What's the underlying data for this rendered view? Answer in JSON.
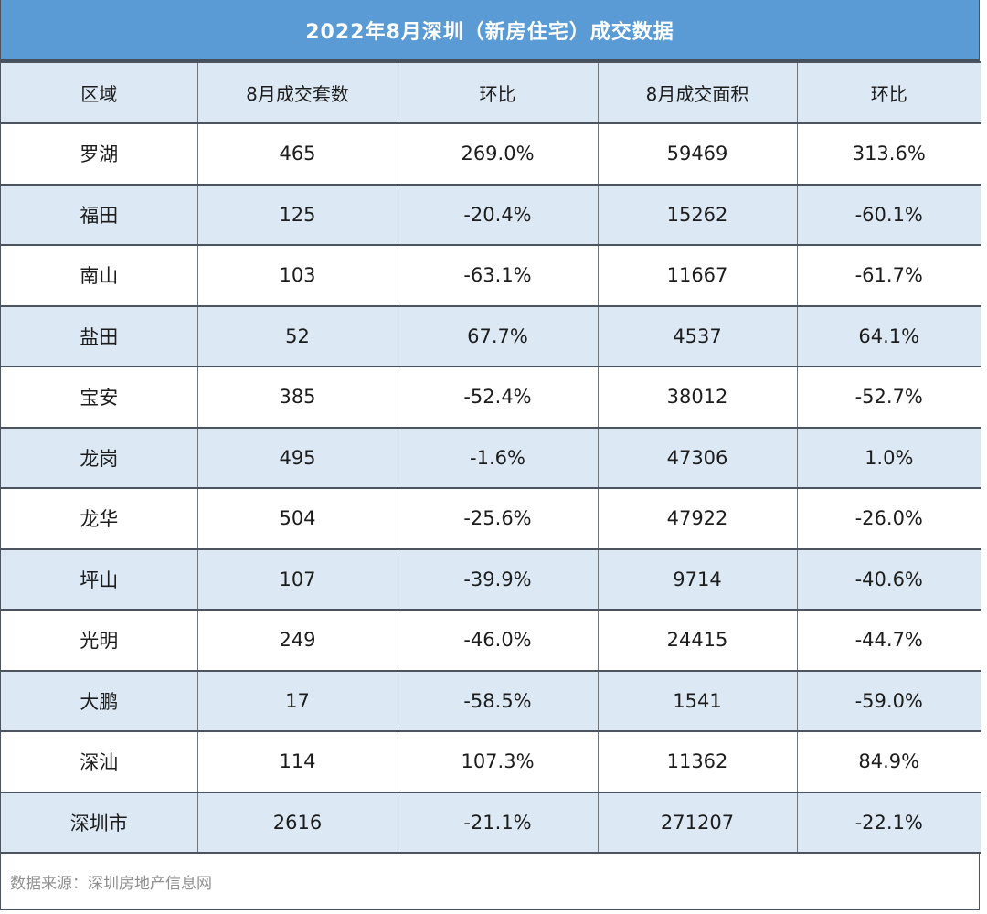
{
  "chart_data": {
    "type": "table",
    "title": "2022年8月深圳（新房住宅）成交数据",
    "columns": [
      "区域",
      "8月成交套数",
      "环比",
      "8月成交面积",
      "环比"
    ],
    "rows": [
      [
        "罗湖",
        "465",
        "269.0%",
        "59469",
        "313.6%"
      ],
      [
        "福田",
        "125",
        "-20.4%",
        "15262",
        "-60.1%"
      ],
      [
        "南山",
        "103",
        "-63.1%",
        "11667",
        "-61.7%"
      ],
      [
        "盐田",
        "52",
        "67.7%",
        "4537",
        "64.1%"
      ],
      [
        "宝安",
        "385",
        "-52.4%",
        "38012",
        "-52.7%"
      ],
      [
        "龙岗",
        "495",
        "-1.6%",
        "47306",
        "1.0%"
      ],
      [
        "龙华",
        "504",
        "-25.6%",
        "47922",
        "-26.0%"
      ],
      [
        "坪山",
        "107",
        "-39.9%",
        "9714",
        "-40.6%"
      ],
      [
        "光明",
        "249",
        "-46.0%",
        "24415",
        "-44.7%"
      ],
      [
        "大鹏",
        "17",
        "-58.5%",
        "1541",
        "-59.0%"
      ],
      [
        "深汕",
        "114",
        "107.3%",
        "11362",
        "84.9%"
      ],
      [
        "深圳市",
        "2616",
        "-21.1%",
        "271207",
        "-22.1%"
      ]
    ],
    "layout_hints": {
      "banded_rows": true,
      "first_banded_row_index": 1,
      "row_band_pattern": "white / light-blue alternating, totals row (深圳市) light-blue"
    }
  },
  "source_note": "数据来源：深圳房地产信息网",
  "colors": {
    "title_bg": "#5B9BD5",
    "title_text": "#FFFFFF",
    "header_bg": "#DCE9F5",
    "band_row_bg": "#DCE9F5",
    "plain_row_bg": "#FFFFFF",
    "body_text": "#1C1C1C",
    "source_text": "#8F8F8F",
    "border_dark": "#4C555F",
    "border_gray": "#6E757D"
  }
}
